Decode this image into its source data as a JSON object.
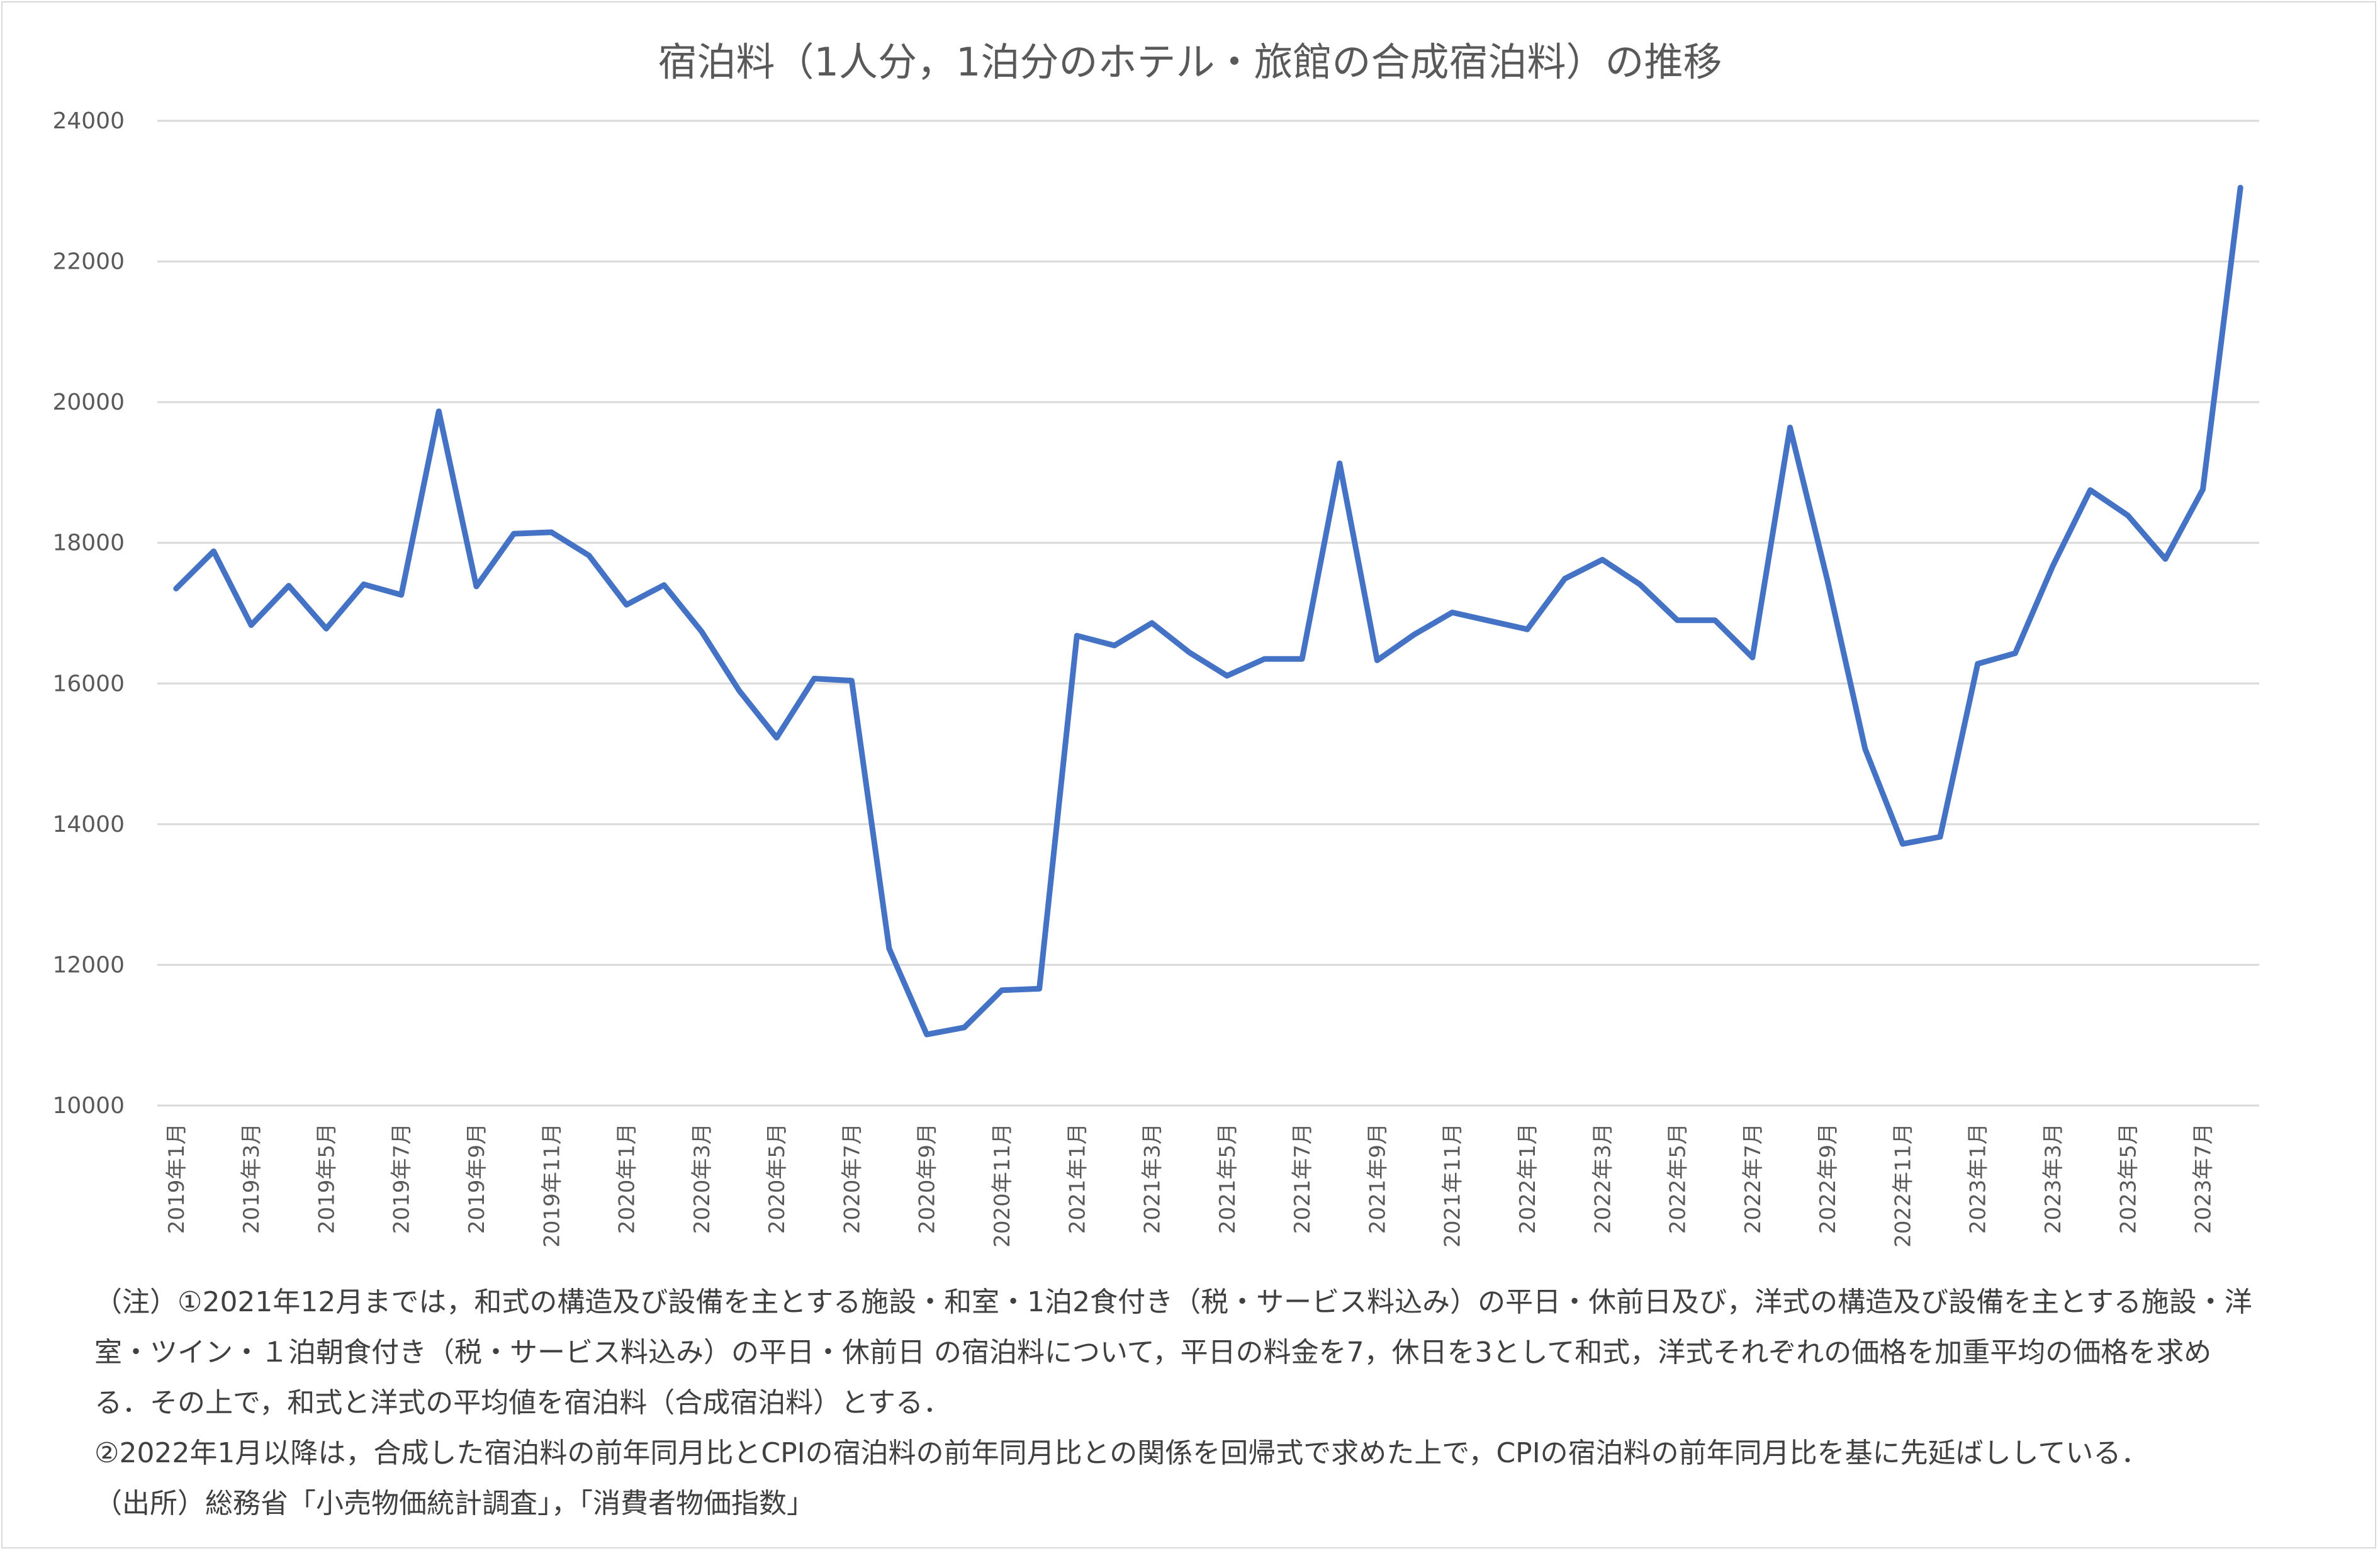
{
  "chart_data": {
    "type": "line",
    "title": "宿泊料（1人分，1泊分のホテル・旅館の合成宿泊料）の推移",
    "xlabel": "",
    "ylabel": "",
    "ylim": [
      10000,
      24000
    ],
    "yticks": [
      10000,
      12000,
      14000,
      16000,
      18000,
      20000,
      22000,
      24000
    ],
    "grid": true,
    "color": "#4472c4",
    "x": [
      "2019年1月",
      "2019年2月",
      "2019年3月",
      "2019年4月",
      "2019年5月",
      "2019年6月",
      "2019年7月",
      "2019年8月",
      "2019年9月",
      "2019年10月",
      "2019年11月",
      "2019年12月",
      "2020年1月",
      "2020年2月",
      "2020年3月",
      "2020年4月",
      "2020年5月",
      "2020年6月",
      "2020年7月",
      "2020年8月",
      "2020年9月",
      "2020年10月",
      "2020年11月",
      "2020年12月",
      "2021年1月",
      "2021年2月",
      "2021年3月",
      "2021年4月",
      "2021年5月",
      "2021年6月",
      "2021年7月",
      "2021年8月",
      "2021年9月",
      "2021年10月",
      "2021年11月",
      "2021年12月",
      "2022年1月",
      "2022年2月",
      "2022年3月",
      "2022年4月",
      "2022年5月",
      "2022年6月",
      "2022年7月",
      "2022年8月",
      "2022年9月",
      "2022年10月",
      "2022年11月",
      "2022年12月",
      "2023年1月",
      "2023年2月",
      "2023年3月",
      "2023年4月",
      "2023年5月",
      "2023年6月",
      "2023年7月",
      "2023年8月"
    ],
    "xtick_labels": [
      "2019年1月",
      "2019年3月",
      "2019年5月",
      "2019年7月",
      "2019年9月",
      "2019年11月",
      "2020年1月",
      "2020年3月",
      "2020年5月",
      "2020年7月",
      "2020年9月",
      "2020年11月",
      "2021年1月",
      "2021年3月",
      "2021年5月",
      "2021年7月",
      "2021年9月",
      "2021年11月",
      "2022年1月",
      "2022年3月",
      "2022年5月",
      "2022年7月",
      "2022年9月",
      "2022年11月",
      "2023年1月",
      "2023年3月",
      "2023年5月",
      "2023年7月"
    ],
    "series": [
      {
        "values": [
          17350,
          17880,
          16830,
          17390,
          16780,
          17410,
          17260,
          19870,
          17380,
          18130,
          18150,
          17820,
          17120,
          17400,
          16740,
          15900,
          15230,
          16070,
          16040,
          12230,
          11010,
          11110,
          11640,
          11660,
          16680,
          16540,
          16860,
          16440,
          16110,
          16350,
          16350,
          19130,
          16330,
          16700,
          17010,
          16890,
          16770,
          17490,
          17760,
          17410,
          16900,
          16900,
          16370,
          19640,
          17460,
          15070,
          13720,
          13820,
          16280,
          16430,
          17670,
          18750,
          18390,
          17770,
          18760,
          23050
        ]
      }
    ]
  },
  "notes": [
    "（注）①2021年12月までは，和式の構造及び設備を主とする施設・和室・1泊2食付き（税・サービス料込み）の平日・休前日及び，洋式の構造及び設備を主とする施設・洋",
    "室・ツイン・１泊朝食付き（税・サービス料込み）の平日・休前日 の宿泊料について，平日の料金を7，休日を3として和式，洋式それぞれの価格を加重平均の価格を求め",
    "る．その上で，和式と洋式の平均値を宿泊料（合成宿泊料）とする．",
    "②2022年1月以降は，合成した宿泊料の前年同月比とCPIの宿泊料の前年同月比との関係を回帰式で求めた上で，CPIの宿泊料の前年同月比を基に先延ばししている．",
    "（出所）総務省「小売物価統計調査」，「消費者物価指数」"
  ]
}
